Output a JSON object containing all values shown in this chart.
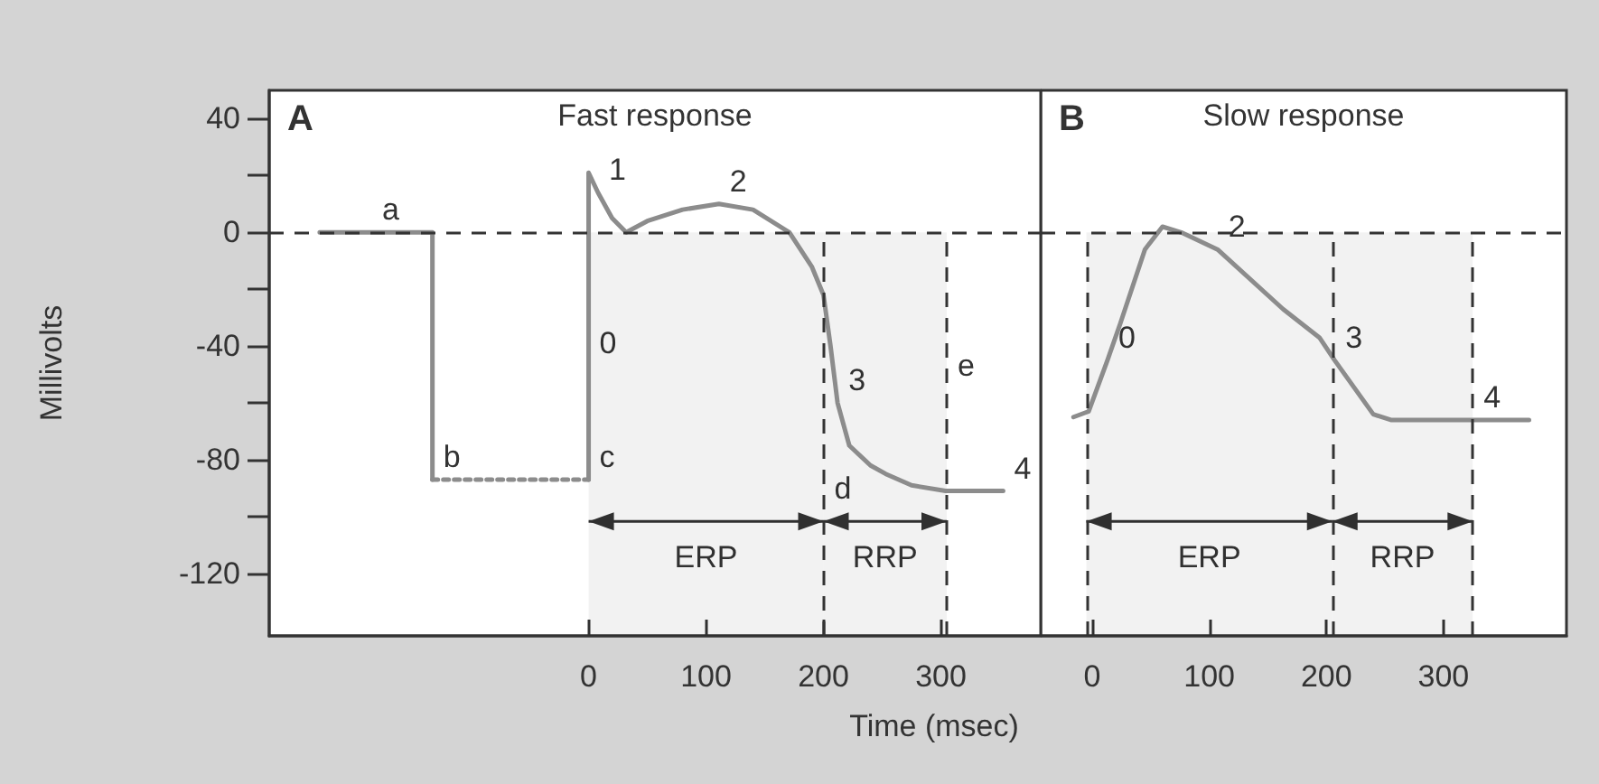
{
  "chart_data": [
    {
      "type": "line",
      "title": "Fast response",
      "xlabel": "Time (msec)",
      "ylabel": "Millivolts",
      "marker": "none",
      "xlim": [
        -272,
        385
      ],
      "xticks": [
        0,
        100,
        200,
        300
      ],
      "ylim": [
        -142,
        50
      ],
      "yticks": [
        40,
        {
          "value": 20,
          "label": null
        },
        0,
        {
          "value": -20,
          "label": null
        },
        -40,
        {
          "value": -60,
          "label": null
        },
        -80,
        {
          "value": -100,
          "label": null
        },
        -120
      ],
      "series": [
        {
          "color": "#8c8c8c",
          "x": [
            -229,
            -133,
            -133
          ],
          "values": [
            0,
            0,
            -87
          ]
        },
        {
          "color": "#8c8c8c",
          "line_style": "dotted",
          "x": [
            -133,
            0
          ],
          "values": [
            -87,
            -87
          ]
        },
        {
          "color": "#8c8c8c",
          "x": [
            0,
            0,
            8,
            20,
            32,
            50,
            80,
            111,
            140,
            171,
            190,
            200,
            206,
            212,
            222,
            240,
            253,
            275,
            304,
            353
          ],
          "values": [
            -87,
            21,
            14,
            5,
            0,
            4,
            8,
            10,
            8,
            0,
            -12,
            -22,
            -40,
            -60,
            -75,
            -82,
            -85,
            -89,
            -91,
            -91
          ]
        }
      ],
      "ref_lines": [
        {
          "axis": "y",
          "value": 0,
          "line_style": "dashed",
          "color": "#333333"
        },
        {
          "axis": "x",
          "value": 200,
          "line_style": "dashed",
          "color": "#333333"
        },
        {
          "axis": "x",
          "value": 305,
          "line_style": "dashed",
          "color": "#333333"
        }
      ],
      "bands": [
        {
          "axis": "x",
          "from": 0,
          "to": 200,
          "label": "ERP"
        },
        {
          "axis": "x",
          "from": 200,
          "to": 305,
          "label": "RRP"
        }
      ],
      "annotations": [
        "A",
        {
          "text": "a",
          "x": -185,
          "y": 0
        },
        {
          "text": "b",
          "x": -133,
          "y": -87
        },
        {
          "text": "c",
          "x": 0,
          "y": -87
        },
        {
          "text": "d",
          "x": 200,
          "y": -98
        },
        {
          "text": "e",
          "x": 305,
          "y": -55
        },
        {
          "text": "0",
          "x": 0,
          "y": -47
        },
        {
          "text": "1",
          "x": 8,
          "y": 14
        },
        {
          "text": "2",
          "x": 111,
          "y": 10
        },
        {
          "text": "3",
          "x": 212,
          "y": -60
        },
        {
          "text": "4",
          "x": 353,
          "y": -91
        }
      ]
    },
    {
      "type": "line",
      "title": "Slow response",
      "marker": "none",
      "tick_labels": "x",
      "xlim": [
        -44,
        405
      ],
      "xticks": [
        0,
        100,
        200,
        300
      ],
      "ylim": [
        -142,
        50
      ],
      "series": [
        {
          "color": "#8c8c8c",
          "x": [
            -16,
            -3,
            13,
            24,
            45,
            60,
            76,
            107,
            163,
            194,
            207,
            240,
            255,
            373
          ],
          "values": [
            -65,
            -63,
            -45,
            -32,
            -6,
            2,
            0,
            -6,
            -27,
            -37,
            -45,
            -64,
            -66,
            -66
          ]
        }
      ],
      "ref_lines": [
        {
          "axis": "y",
          "value": 0,
          "line_style": "dashed",
          "color": "#333333"
        },
        {
          "axis": "x",
          "value": -5,
          "line_style": "dashed",
          "color": "#333333"
        },
        {
          "axis": "x",
          "value": 205,
          "line_style": "dashed",
          "color": "#333333"
        },
        {
          "axis": "x",
          "value": 325,
          "line_style": "dashed",
          "color": "#333333"
        }
      ],
      "bands": [
        {
          "axis": "x",
          "from": -5,
          "to": 205,
          "label": "ERP"
        },
        {
          "axis": "x",
          "from": 205,
          "to": 325,
          "label": "RRP"
        }
      ],
      "annotations": [
        "B",
        {
          "text": "0",
          "x": 13,
          "y": -45
        },
        {
          "text": "2",
          "x": 107,
          "y": -6
        },
        {
          "text": "3",
          "x": 207,
          "y": -45
        },
        {
          "text": "4",
          "x": 325,
          "y": -66
        }
      ]
    }
  ]
}
